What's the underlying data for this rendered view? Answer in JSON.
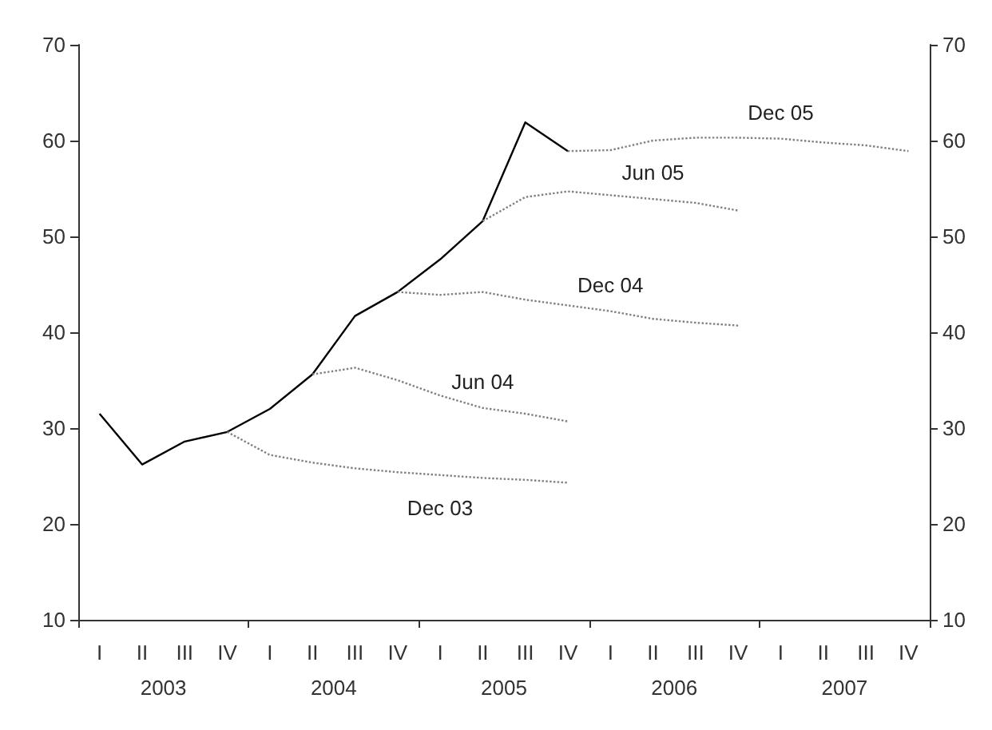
{
  "chart_data": {
    "type": "line",
    "categories": [
      "I",
      "II",
      "III",
      "IV",
      "I",
      "II",
      "III",
      "IV",
      "I",
      "II",
      "III",
      "IV",
      "I",
      "II",
      "III",
      "IV",
      "I",
      "II",
      "III",
      "IV"
    ],
    "annotations": [
      "2003",
      "2004",
      "2005",
      "2006",
      "2007"
    ],
    "series": [
      {
        "color": "#000000",
        "line_style": "solid",
        "values": [
          31.5,
          26.2,
          28.6,
          29.6,
          32.0,
          35.6,
          41.7,
          44.2,
          47.6,
          51.6,
          61.9,
          58.9,
          null,
          null,
          null,
          null,
          null,
          null,
          null,
          null
        ]
      },
      {
        "name": "Dec 03",
        "color": "#808080",
        "line_style": "dotted",
        "values": [
          null,
          null,
          null,
          29.6,
          27.2,
          26.4,
          25.8,
          25.4,
          25.1,
          24.8,
          24.6,
          24.3,
          null,
          null,
          null,
          null,
          null,
          null,
          null,
          null
        ]
      },
      {
        "name": "Jun 04",
        "color": "#808080",
        "line_style": "dotted",
        "values": [
          null,
          null,
          null,
          null,
          null,
          35.6,
          36.3,
          35.0,
          33.4,
          32.1,
          31.5,
          30.7,
          null,
          null,
          null,
          null,
          null,
          null,
          null,
          null
        ]
      },
      {
        "name": "Dec 04",
        "color": "#808080",
        "line_style": "dotted",
        "values": [
          null,
          null,
          null,
          null,
          null,
          null,
          null,
          44.2,
          43.9,
          44.2,
          43.4,
          42.8,
          42.2,
          41.4,
          41.0,
          40.7,
          null,
          null,
          null,
          null
        ]
      },
      {
        "name": "Jun 05",
        "color": "#808080",
        "line_style": "dotted",
        "values": [
          null,
          null,
          null,
          null,
          null,
          null,
          null,
          null,
          null,
          51.6,
          54.1,
          54.7,
          54.3,
          53.9,
          53.5,
          52.7,
          null,
          null,
          null,
          null
        ]
      },
      {
        "name": "Dec 05",
        "color": "#808080",
        "line_style": "dotted",
        "values": [
          null,
          null,
          null,
          null,
          null,
          null,
          null,
          null,
          null,
          null,
          null,
          58.9,
          59.0,
          60.0,
          60.3,
          60.3,
          60.2,
          59.8,
          59.5,
          58.9
        ]
      }
    ],
    "ylim": [
      10,
      70
    ],
    "yticks": [
      10,
      20,
      30,
      40,
      50,
      60,
      70
    ],
    "y2lim": [
      10,
      70
    ],
    "y2ticks": [
      10,
      20,
      30,
      40,
      50,
      60,
      70
    ],
    "grid": false,
    "legend": false,
    "marker": "none"
  }
}
